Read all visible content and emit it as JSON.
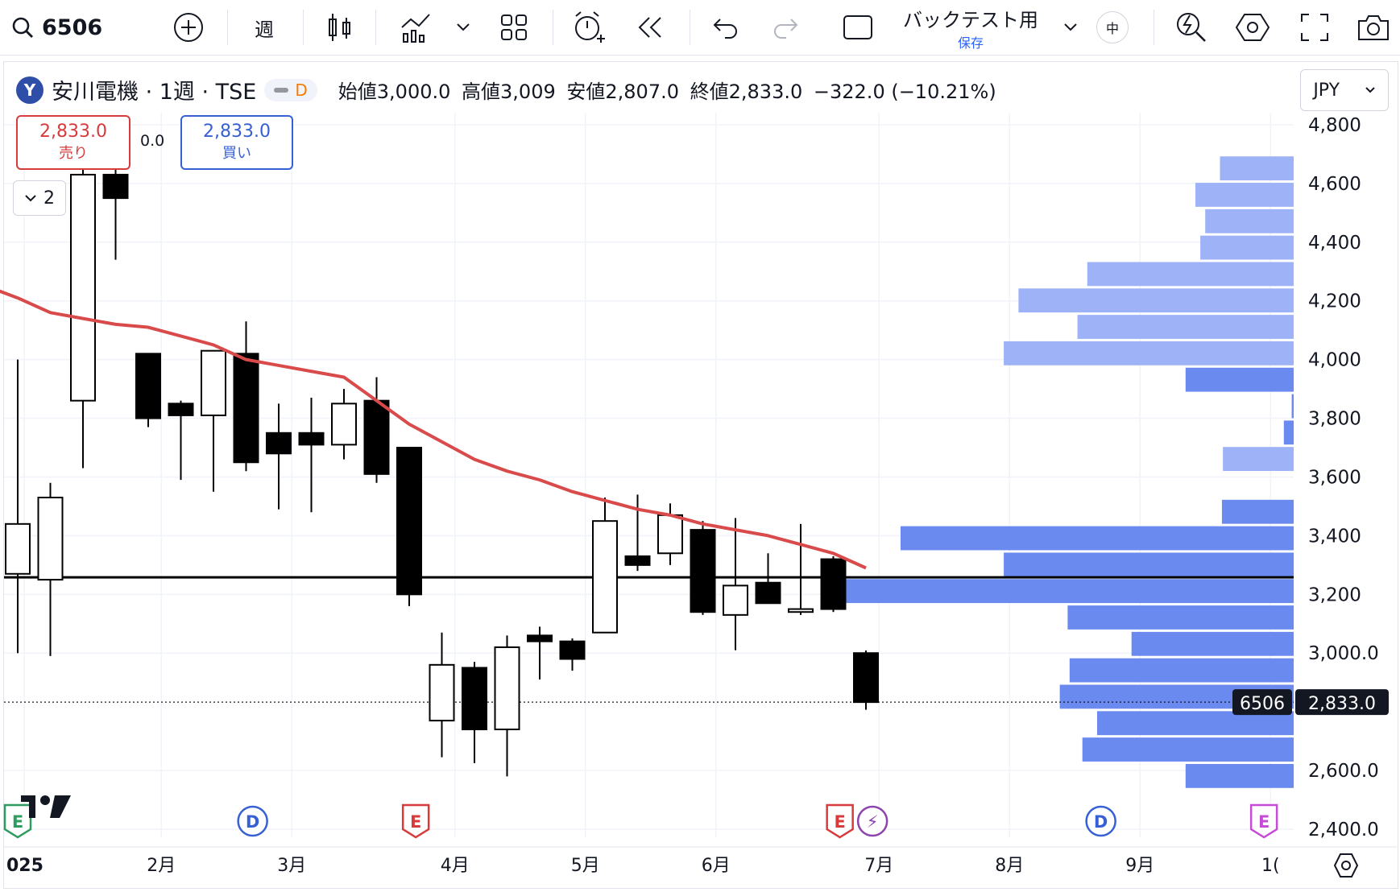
{
  "toolbar": {
    "symbol": "6506",
    "interval": "週",
    "layout_name": "バックテスト用",
    "layout_sub": "保存",
    "lang_badge": "中"
  },
  "legend": {
    "title": "安川電機 · 1週 · TSE",
    "open_label": "始値",
    "open": "3,000.0",
    "high_label": "高値",
    "high": "3,009",
    "low_label": "安値",
    "low": "2,807.0",
    "close_label": "終値",
    "close": "2,833.0",
    "change": "−322.0 (−10.21%)",
    "badge_d": "D",
    "logo_letter": "Y"
  },
  "trade": {
    "sell_price": "2,833.0",
    "sell_label": "売り",
    "spread": "0.0",
    "buy_price": "2,833.0",
    "buy_label": "買い",
    "indicator_count": "2"
  },
  "currency": "JPY",
  "colors": {
    "ma": "#d94a4a",
    "volume_profile_up": "#9db2f7",
    "volume_profile_down": "#6a8af0",
    "candle_up": "#ffffff",
    "candle_down": "#000000",
    "sell": "#d73b3b",
    "buy": "#3660d4"
  },
  "chart_data": {
    "type": "candlestick",
    "ylim": [
      2400,
      4800
    ],
    "y_ticks": [
      "4,800",
      "4,600",
      "4,400",
      "4,200",
      "4,000",
      "3,800",
      "3,600",
      "3,400",
      "3,200",
      "3,000.0",
      "2,600.0",
      "2,400.0"
    ],
    "y_tick_values": [
      4800,
      4600,
      4400,
      4200,
      4000,
      3800,
      3600,
      3400,
      3200,
      3000,
      2600,
      2400
    ],
    "x_labels": [
      "025",
      "2月",
      "3月",
      "4月",
      "5月",
      "6月",
      "7月",
      "8月",
      "9月",
      "1("
    ],
    "x_label_index": [
      0.3,
      4.5,
      8.5,
      13.5,
      17.5,
      21.5,
      26.5,
      30.5,
      34.5,
      38.5
    ],
    "candles": [
      {
        "o": 3270,
        "h": 4000,
        "l": 3000,
        "c": 3440
      },
      {
        "o": 3250,
        "h": 3580,
        "l": 2990,
        "c": 3530
      },
      {
        "o": 3860,
        "h": 4750,
        "l": 3630,
        "c": 4630
      },
      {
        "o": 4630,
        "h": 4700,
        "l": 4340,
        "c": 4550
      },
      {
        "o": 4020,
        "h": 4020,
        "l": 3770,
        "c": 3800
      },
      {
        "o": 3850,
        "h": 3860,
        "l": 3590,
        "c": 3810
      },
      {
        "o": 3810,
        "h": 4030,
        "l": 3550,
        "c": 4030
      },
      {
        "o": 4020,
        "h": 4130,
        "l": 3620,
        "c": 3650
      },
      {
        "o": 3750,
        "h": 3850,
        "l": 3490,
        "c": 3680
      },
      {
        "o": 3750,
        "h": 3870,
        "l": 3480,
        "c": 3710
      },
      {
        "o": 3710,
        "h": 3900,
        "l": 3660,
        "c": 3850
      },
      {
        "o": 3860,
        "h": 3940,
        "l": 3580,
        "c": 3610
      },
      {
        "o": 3700,
        "h": 3700,
        "l": 3160,
        "c": 3200
      },
      {
        "o": 2770,
        "h": 3070,
        "l": 2645,
        "c": 2960
      },
      {
        "o": 2950,
        "h": 2970,
        "l": 2625,
        "c": 2740
      },
      {
        "o": 2740,
        "h": 3060,
        "l": 2580,
        "c": 3020
      },
      {
        "o": 3060,
        "h": 3090,
        "l": 2910,
        "c": 3040
      },
      {
        "o": 3040,
        "h": 3050,
        "l": 2940,
        "c": 2980
      },
      {
        "o": 3070,
        "h": 3530,
        "l": 3070,
        "c": 3450
      },
      {
        "o": 3330,
        "h": 3540,
        "l": 3280,
        "c": 3300
      },
      {
        "o": 3340,
        "h": 3510,
        "l": 3300,
        "c": 3470
      },
      {
        "o": 3420,
        "h": 3450,
        "l": 3130,
        "c": 3140
      },
      {
        "o": 3130,
        "h": 3460,
        "l": 3010,
        "c": 3230
      },
      {
        "o": 3240,
        "h": 3340,
        "l": 3170,
        "c": 3170
      },
      {
        "o": 3140,
        "h": 3440,
        "l": 3130,
        "c": 3150
      },
      {
        "o": 3320,
        "h": 3330,
        "l": 3140,
        "c": 3150
      },
      {
        "o": 3000,
        "h": 3009,
        "l": 2807,
        "c": 2833
      }
    ],
    "ma": {
      "name": "",
      "x": [
        0,
        1,
        2,
        3,
        4,
        5,
        6,
        7,
        8,
        9,
        10,
        11,
        12,
        13,
        14,
        15,
        16,
        17,
        18,
        19,
        20,
        21,
        22,
        23,
        24,
        25,
        26
      ],
      "values": [
        4210,
        4160,
        4140,
        4120,
        4110,
        4080,
        4050,
        4000,
        3980,
        3960,
        3940,
        3860,
        3780,
        3720,
        3660,
        3620,
        3590,
        3550,
        3520,
        3490,
        3470,
        3440,
        3420,
        3400,
        3370,
        3340,
        3290
      ]
    },
    "horizontal_line": 3258,
    "last_price": 2833,
    "last_price_label": "2,833.0",
    "symbol_tag": "6506",
    "volume_profile": {
      "row_height": 90,
      "rows": [
        {
          "price": 4650,
          "vol": 75
        },
        {
          "price": 4560,
          "vol": 100
        },
        {
          "price": 4470,
          "vol": 90
        },
        {
          "price": 4380,
          "vol": 95
        },
        {
          "price": 4290,
          "vol": 210
        },
        {
          "price": 4200,
          "vol": 280
        },
        {
          "price": 4110,
          "vol": 220
        },
        {
          "price": 4020,
          "vol": 295
        },
        {
          "price": 3930,
          "vol": 110
        },
        {
          "price": 3840,
          "vol": 2
        },
        {
          "price": 3750,
          "vol": 10
        },
        {
          "price": 3660,
          "vol": 72
        },
        {
          "price": 3480,
          "vol": 73
        },
        {
          "price": 3390,
          "vol": 400
        },
        {
          "price": 3300,
          "vol": 295
        },
        {
          "price": 3210,
          "vol": 480
        },
        {
          "price": 3120,
          "vol": 230
        },
        {
          "price": 3030,
          "vol": 165
        },
        {
          "price": 2940,
          "vol": 228
        },
        {
          "price": 2850,
          "vol": 238
        },
        {
          "price": 2760,
          "vol": 200
        },
        {
          "price": 2670,
          "vol": 215
        },
        {
          "price": 2580,
          "vol": 110
        }
      ]
    },
    "events": [
      {
        "type": "E",
        "idx": 0.4,
        "color": "#2e9b5f"
      },
      {
        "type": "D",
        "idx": 7.3,
        "color": "#3660d4"
      },
      {
        "type": "E",
        "idx": 12.3,
        "color": "#d73b3b"
      },
      {
        "type": "E",
        "idx": 25.3,
        "color": "#d73b3b"
      },
      {
        "type": "⚡",
        "idx": 26.3,
        "color": "#8e44ad"
      },
      {
        "type": "D",
        "idx": 33.3,
        "color": "#3660d4"
      },
      {
        "type": "E",
        "idx": 38.3,
        "color": "#c64bd6"
      }
    ]
  }
}
